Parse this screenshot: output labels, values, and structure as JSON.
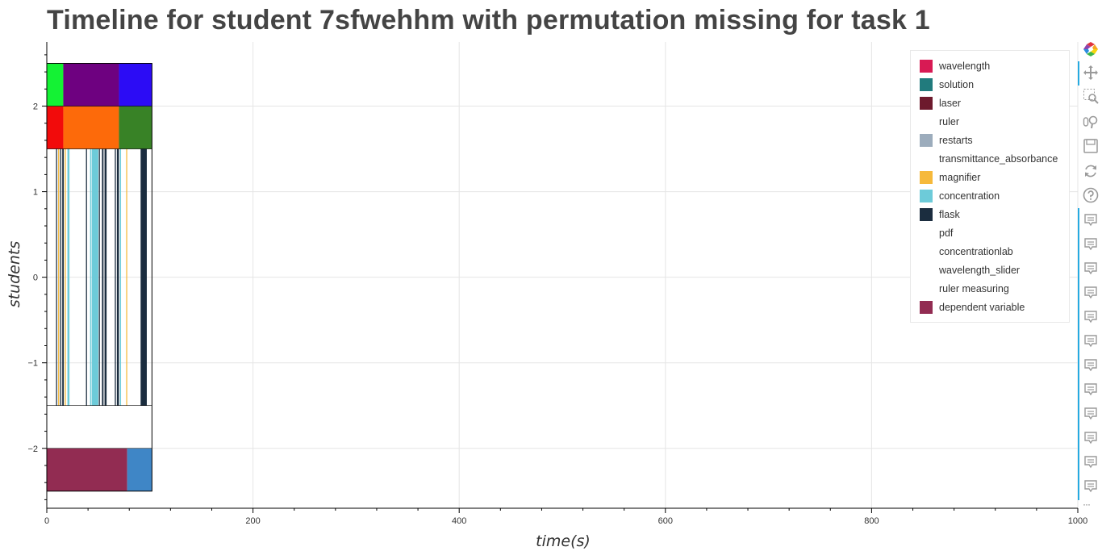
{
  "chart_data": {
    "type": "timeline",
    "title": "Timeline for student 7sfwehhm with permutation missing for task 1",
    "xlabel": "time(s)",
    "ylabel": "students",
    "xlim": [
      0,
      1000
    ],
    "ylim": [
      -2.7,
      2.75
    ],
    "x_ticks": [
      0,
      200,
      400,
      600,
      800,
      1000
    ],
    "x_tick_labels": [
      "0",
      "200",
      "400",
      "600",
      "800",
      "1000"
    ],
    "y_ticks": [
      -2,
      -1,
      0,
      1,
      2
    ],
    "y_tick_labels": [
      "−2",
      "−1",
      "0",
      "1",
      "2"
    ],
    "grid": true,
    "legend_position": "top-right",
    "segments": [
      {
        "x0": 0,
        "x1": 16,
        "y0": 2,
        "y1": 2.5,
        "color": "#14f234"
      },
      {
        "x0": 16,
        "x1": 70,
        "y0": 2,
        "y1": 2.5,
        "color": "#6e0180"
      },
      {
        "x0": 70,
        "x1": 102,
        "y0": 2,
        "y1": 2.5,
        "color": "#2c0cf5"
      },
      {
        "x0": 0,
        "x1": 16,
        "y0": 1.5,
        "y1": 2,
        "color": "#f20b0b"
      },
      {
        "x0": 16,
        "x1": 70,
        "y0": 1.5,
        "y1": 2,
        "color": "#fd6a0a"
      },
      {
        "x0": 70,
        "x1": 102,
        "y0": 1.5,
        "y1": 2,
        "color": "#388226"
      },
      {
        "x0": 0,
        "x1": 78,
        "y0": -2.5,
        "y1": -2,
        "color": "#922c52"
      },
      {
        "x0": 78,
        "x1": 102,
        "y0": -2.5,
        "y1": -2,
        "color": "#3f86c6"
      }
    ],
    "events": [
      {
        "x0": 9,
        "x1": 10,
        "color": "#1b2d3f"
      },
      {
        "x0": 11,
        "x1": 12,
        "color": "#f6b93b"
      },
      {
        "x0": 13,
        "x1": 14,
        "color": "#1b2d3f"
      },
      {
        "x0": 15,
        "x1": 16.5,
        "color": "#1b2d3f"
      },
      {
        "x0": 17.5,
        "x1": 18.5,
        "color": "#f6b93b"
      },
      {
        "x0": 20,
        "x1": 22,
        "color": "#6dcbd9"
      },
      {
        "x0": 38,
        "x1": 39,
        "color": "#1b2d3f"
      },
      {
        "x0": 42,
        "x1": 43,
        "color": "#6dcbd9"
      },
      {
        "x0": 43.5,
        "x1": 50,
        "color": "#6dcbd9"
      },
      {
        "x0": 50.5,
        "x1": 51.5,
        "color": "#1b2d3f"
      },
      {
        "x0": 53.5,
        "x1": 55,
        "color": "#1b2d3f"
      },
      {
        "x0": 56,
        "x1": 58,
        "color": "#1b2d3f"
      },
      {
        "x0": 66,
        "x1": 67,
        "color": "#1b2d3f"
      },
      {
        "x0": 68,
        "x1": 70,
        "color": "#1b2d3f"
      },
      {
        "x0": 71,
        "x1": 72,
        "color": "#6dcbd9"
      },
      {
        "x0": 77,
        "x1": 78,
        "color": "#f6b93b"
      },
      {
        "x0": 91,
        "x1": 97,
        "color": "#1b2d3f"
      }
    ],
    "events_range": {
      "y0": -1.5,
      "y1": 1.5
    },
    "legend": [
      {
        "label": "wavelength",
        "color": "#d81a54"
      },
      {
        "label": "solution",
        "color": "#217b7d"
      },
      {
        "label": "laser",
        "color": "#6d1a2d"
      },
      {
        "label": "ruler",
        "color": ""
      },
      {
        "label": "restarts",
        "color": "#9cacbc"
      },
      {
        "label": "transmittance_absorbance",
        "color": ""
      },
      {
        "label": "magnifier",
        "color": "#f6b93b"
      },
      {
        "label": "concentration",
        "color": "#6dcbd9"
      },
      {
        "label": "flask",
        "color": "#1b2d3f"
      },
      {
        "label": "pdf",
        "color": ""
      },
      {
        "label": "concentrationlab",
        "color": ""
      },
      {
        "label": "wavelength_slider",
        "color": ""
      },
      {
        "label": "ruler measuring",
        "color": ""
      },
      {
        "label": "dependent variable",
        "color": "#922c52"
      }
    ]
  },
  "toolbar": {
    "buttons": [
      {
        "name": "bokeh-logo-icon",
        "interactable": false
      },
      {
        "name": "pan-icon",
        "interactable": true
      },
      {
        "name": "box-zoom-icon",
        "interactable": true
      },
      {
        "name": "wheel-zoom-icon",
        "interactable": true
      },
      {
        "name": "save-icon",
        "interactable": true
      },
      {
        "name": "reset-icon",
        "interactable": true
      },
      {
        "name": "help-icon",
        "interactable": true
      },
      {
        "name": "hover-icon",
        "interactable": true
      },
      {
        "name": "hover-icon",
        "interactable": true
      },
      {
        "name": "hover-icon",
        "interactable": true
      },
      {
        "name": "hover-icon",
        "interactable": true
      },
      {
        "name": "hover-icon",
        "interactable": true
      },
      {
        "name": "hover-icon",
        "interactable": true
      },
      {
        "name": "hover-icon",
        "interactable": true
      },
      {
        "name": "hover-icon",
        "interactable": true
      },
      {
        "name": "hover-icon",
        "interactable": true
      },
      {
        "name": "hover-icon",
        "interactable": true
      },
      {
        "name": "hover-icon",
        "interactable": true
      },
      {
        "name": "hover-icon",
        "interactable": true
      }
    ],
    "overflow_label": "···",
    "accent_color": "#26aae1"
  }
}
